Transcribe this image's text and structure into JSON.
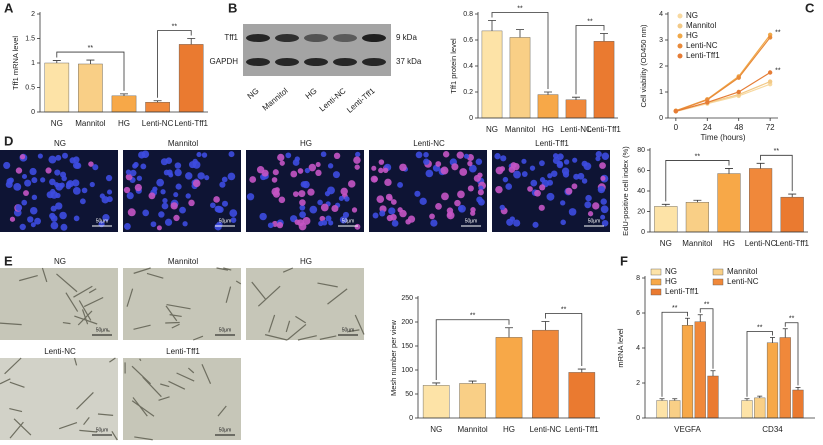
{
  "panel_labels": [
    "A",
    "B",
    "C",
    "D",
    "E",
    "F"
  ],
  "blot": {
    "bands": [
      "Tff1",
      "GAPDH"
    ],
    "sizes": [
      "9 kDa",
      "37 kDa"
    ],
    "lanes": [
      "NG",
      "Mannitol",
      "HG",
      "Lenti-NC",
      "Lenti-Tff1"
    ]
  },
  "micrographs_d": {
    "labels": [
      "NG",
      "Mannitol",
      "HG",
      "Lenti-NC",
      "Lenti-Tff1"
    ],
    "scale": "50μm"
  },
  "micrographs_e": {
    "labels": [
      "NG",
      "Mannitol",
      "HG",
      "Lenti-NC",
      "Lenti-Tff1"
    ],
    "scale": "50μm"
  },
  "chart_data": [
    {
      "type": "bar",
      "ylabel": "Tff1 mRNA level",
      "categories": [
        "NG",
        "Mannitol",
        "HG",
        "Lenti-NC",
        "Lenti-Tff1"
      ],
      "values": [
        1.0,
        0.98,
        0.33,
        0.2,
        1.38
      ],
      "errors": [
        0.05,
        0.08,
        0.04,
        0.03,
        0.12
      ],
      "colors": [
        "#fde3a7",
        "#f9cf86",
        "#f7a848",
        "#f0883a",
        "#ea7a30"
      ],
      "ylim": [
        0,
        2
      ],
      "yticks": [
        0,
        0.5,
        1,
        1.5,
        2
      ],
      "annotations": [
        "**",
        "**"
      ]
    },
    {
      "type": "bar",
      "ylabel": "Tff1 protein level",
      "categories": [
        "NG",
        "Mannitol",
        "HG",
        "Lenti-NC",
        "Lenti-Tff1"
      ],
      "values": [
        0.67,
        0.62,
        0.18,
        0.14,
        0.59
      ],
      "errors": [
        0.08,
        0.06,
        0.02,
        0.02,
        0.06
      ],
      "colors": [
        "#fde3a7",
        "#f9cf86",
        "#f7a848",
        "#f0883a",
        "#ea7a30"
      ],
      "ylim": [
        0,
        0.8
      ],
      "yticks": [
        0,
        0.2,
        0.4,
        0.6,
        0.8
      ],
      "annotations": [
        "**",
        "**"
      ]
    },
    {
      "type": "line",
      "ylabel": "Cell viability (OD450 nm)",
      "xlabel": "Time (hours)",
      "x": [
        0,
        24,
        48,
        72
      ],
      "series": [
        {
          "name": "NG",
          "color": "#f8d9a0",
          "values": [
            0.25,
            0.55,
            0.85,
            1.3
          ]
        },
        {
          "name": "Mannitol",
          "color": "#f2c987",
          "values": [
            0.27,
            0.58,
            0.9,
            1.4
          ]
        },
        {
          "name": "HG",
          "color": "#f0a848",
          "values": [
            0.28,
            0.72,
            1.6,
            3.2
          ]
        },
        {
          "name": "Lenti-NC",
          "color": "#e88a3a",
          "values": [
            0.27,
            0.7,
            1.55,
            3.1
          ]
        },
        {
          "name": "Lenti-Tff1",
          "color": "#e57c35",
          "values": [
            0.26,
            0.6,
            1.0,
            1.75
          ]
        }
      ],
      "xlim": [
        -6,
        78
      ],
      "xticks": [
        0,
        24,
        48,
        72
      ],
      "ylim": [
        0,
        4
      ],
      "yticks": [
        0,
        1,
        2,
        3,
        4
      ],
      "annotations": [
        "**",
        "**"
      ]
    },
    {
      "type": "bar",
      "ylabel": "EdU-positive cell index (%)",
      "categories": [
        "NG",
        "Mannitol",
        "HG",
        "Lenti-NC",
        "Lenti-Tff1"
      ],
      "values": [
        25,
        29,
        57,
        62,
        34
      ],
      "errors": [
        2,
        2,
        5,
        5,
        3
      ],
      "colors": [
        "#fde3a7",
        "#f9cf86",
        "#f7a848",
        "#f0883a",
        "#ea7a30"
      ],
      "ylim": [
        0,
        80
      ],
      "yticks": [
        0,
        20,
        40,
        60,
        80
      ],
      "annotations": [
        "**",
        "**"
      ]
    },
    {
      "type": "bar",
      "ylabel": "Mesh number per view",
      "categories": [
        "NG",
        "Mannitol",
        "HG",
        "Lenti-NC",
        "Lenti-Tff1"
      ],
      "values": [
        68,
        72,
        168,
        183,
        95
      ],
      "errors": [
        5,
        5,
        20,
        18,
        7
      ],
      "colors": [
        "#fde3a7",
        "#f9cf86",
        "#f7a848",
        "#f0883a",
        "#ea7a30"
      ],
      "ylim": [
        0,
        250
      ],
      "yticks": [
        0,
        50,
        100,
        150,
        200,
        250
      ],
      "annotations": [
        "**",
        "**"
      ]
    },
    {
      "type": "bar",
      "ylabel": "mRNA level",
      "categories": [
        "VEGFA",
        "CD34"
      ],
      "series": [
        {
          "name": "NG",
          "color": "#fde3a7",
          "values": [
            1.0,
            1.0
          ],
          "errors": [
            0.1,
            0.1
          ]
        },
        {
          "name": "Mannitol",
          "color": "#f9cf86",
          "values": [
            1.0,
            1.15
          ],
          "errors": [
            0.1,
            0.1
          ]
        },
        {
          "name": "HG",
          "color": "#f7a848",
          "values": [
            5.3,
            4.3
          ],
          "errors": [
            0.4,
            0.3
          ]
        },
        {
          "name": "Lenti-NC",
          "color": "#f0883a",
          "values": [
            5.5,
            4.6
          ],
          "errors": [
            0.4,
            0.5
          ]
        },
        {
          "name": "Lenti-Tff1",
          "color": "#ea7a30",
          "values": [
            2.4,
            1.6
          ],
          "errors": [
            0.3,
            0.15
          ]
        }
      ],
      "ylim": [
        0,
        8
      ],
      "yticks": [
        0,
        2,
        4,
        6,
        8
      ],
      "annotations": [
        "**",
        "**",
        "**",
        "**"
      ]
    }
  ]
}
